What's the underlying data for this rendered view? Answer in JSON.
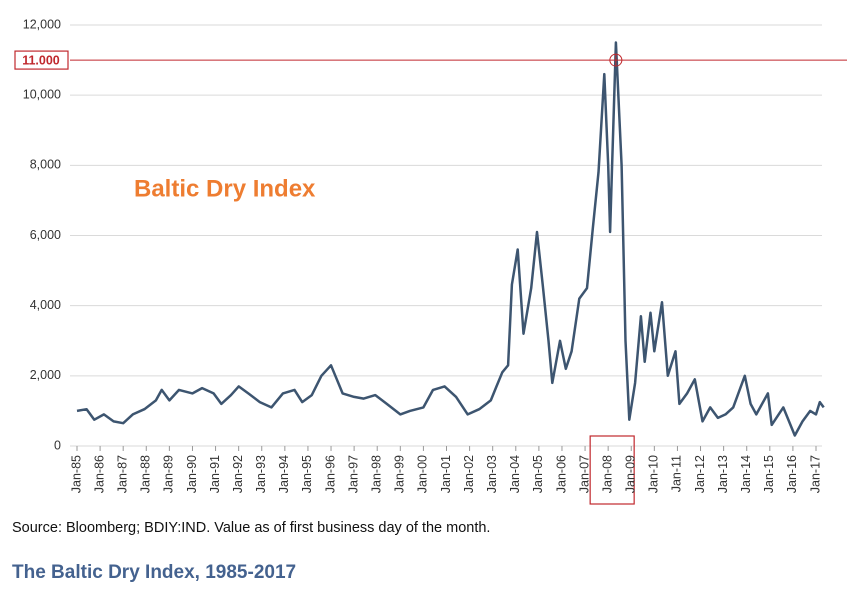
{
  "chart_data": {
    "type": "line",
    "title": "Baltic Dry Index",
    "caption": "The Baltic Dry Index, 1985-2017",
    "source": "Source: Bloomberg; BDIY:IND. Value as of first business day of the month.",
    "x": [
      "1985-01",
      "1985-06",
      "1985-10",
      "1986-03",
      "1986-08",
      "1987-01",
      "1987-06",
      "1987-12",
      "1988-06",
      "1988-09",
      "1989-01",
      "1989-06",
      "1990-01",
      "1990-06",
      "1990-12",
      "1991-04",
      "1991-09",
      "1992-01",
      "1992-06",
      "1992-12",
      "1993-06",
      "1993-12",
      "1994-06",
      "1994-10",
      "1995-03",
      "1995-08",
      "1996-01",
      "1996-04",
      "1996-07",
      "1997-01",
      "1997-06",
      "1997-12",
      "1998-06",
      "1999-01",
      "1999-06",
      "2000-01",
      "2000-06",
      "2000-12",
      "2001-06",
      "2001-12",
      "2002-06",
      "2002-12",
      "2003-03",
      "2003-06",
      "2003-09",
      "2003-11",
      "2004-02",
      "2004-05",
      "2004-09",
      "2004-12",
      "2005-03",
      "2005-06",
      "2005-08",
      "2005-12",
      "2006-03",
      "2006-06",
      "2006-10",
      "2007-02",
      "2007-05",
      "2007-08",
      "2007-11",
      "2008-01",
      "2008-02",
      "2008-03",
      "2008-05",
      "2008-08",
      "2008-10",
      "2008-12",
      "2009-03",
      "2009-06",
      "2009-08",
      "2009-11",
      "2010-01",
      "2010-05",
      "2010-08",
      "2010-12",
      "2011-02",
      "2011-06",
      "2011-10",
      "2012-02",
      "2012-06",
      "2012-10",
      "2013-02",
      "2013-06",
      "2013-12",
      "2014-03",
      "2014-06",
      "2014-12",
      "2015-02",
      "2015-08",
      "2016-02",
      "2016-06",
      "2016-10",
      "2017-01",
      "2017-03",
      "2017-05"
    ],
    "series": [
      {
        "name": "Baltic Dry Index",
        "color": "#3d5570",
        "values": [
          1000,
          1050,
          750,
          900,
          700,
          650,
          900,
          1050,
          1300,
          1600,
          1300,
          1600,
          1500,
          1650,
          1500,
          1200,
          1450,
          1700,
          1500,
          1250,
          1100,
          1500,
          1600,
          1250,
          1450,
          2000,
          2300,
          1900,
          1500,
          1400,
          1350,
          1450,
          1200,
          900,
          1000,
          1100,
          1600,
          1700,
          1400,
          900,
          1050,
          1300,
          1700,
          2100,
          2300,
          4600,
          5600,
          3200,
          4500,
          6100,
          4600,
          3000,
          1800,
          3000,
          2200,
          2700,
          4200,
          4500,
          6200,
          7800,
          10600,
          8000,
          6100,
          7900,
          11500,
          8000,
          3000,
          750,
          1800,
          3700,
          2400,
          3800,
          2700,
          4100,
          2000,
          2700,
          1200,
          1500,
          1900,
          700,
          1100,
          800,
          900,
          1100,
          2000,
          1200,
          900,
          1500,
          600,
          1100,
          300,
          700,
          1000,
          900,
          1250,
          1100
        ]
      }
    ],
    "xticks": [
      {
        "value": "1985-01",
        "label": "Jan-85"
      },
      {
        "value": "1986-01",
        "label": "Jan-86"
      },
      {
        "value": "1987-01",
        "label": "Jan-87"
      },
      {
        "value": "1988-01",
        "label": "Jan-88"
      },
      {
        "value": "1989-01",
        "label": "Jan-89"
      },
      {
        "value": "1990-01",
        "label": "Jan-90"
      },
      {
        "value": "1991-01",
        "label": "Jan-91"
      },
      {
        "value": "1992-01",
        "label": "Jan-92"
      },
      {
        "value": "1993-01",
        "label": "Jan-93"
      },
      {
        "value": "1994-01",
        "label": "Jan-94"
      },
      {
        "value": "1995-01",
        "label": "Jan-95"
      },
      {
        "value": "1996-01",
        "label": "Jan-96"
      },
      {
        "value": "1997-01",
        "label": "Jan-97"
      },
      {
        "value": "1998-01",
        "label": "Jan-98"
      },
      {
        "value": "1999-01",
        "label": "Jan-99"
      },
      {
        "value": "2000-01",
        "label": "Jan-00"
      },
      {
        "value": "2001-01",
        "label": "Jan-01"
      },
      {
        "value": "2002-01",
        "label": "Jan-02"
      },
      {
        "value": "2003-01",
        "label": "Jan-03"
      },
      {
        "value": "2004-01",
        "label": "Jan-04"
      },
      {
        "value": "2005-01",
        "label": "Jan-05"
      },
      {
        "value": "2006-01",
        "label": "Jan-06"
      },
      {
        "value": "2007-01",
        "label": "Jan-07"
      },
      {
        "value": "2008-01",
        "label": "Jan-08"
      },
      {
        "value": "2009-01",
        "label": "Jan-09"
      },
      {
        "value": "2010-01",
        "label": "Jan-10"
      },
      {
        "value": "2011-01",
        "label": "Jan-11"
      },
      {
        "value": "2012-01",
        "label": "Jan-12"
      },
      {
        "value": "2013-01",
        "label": "Jan-13"
      },
      {
        "value": "2014-01",
        "label": "Jan-14"
      },
      {
        "value": "2015-01",
        "label": "Jan-15"
      },
      {
        "value": "2016-01",
        "label": "Jan-16"
      },
      {
        "value": "2017-01",
        "label": "Jan-17"
      }
    ],
    "ylim": [
      0,
      12000
    ],
    "yticks": [
      0,
      {
        "value": 2000,
        "label": "2,000"
      },
      {
        "value": 4000,
        "label": "4,000"
      },
      {
        "value": 6000,
        "label": "6,000"
      },
      {
        "value": 8000,
        "label": "8,000"
      },
      {
        "value": 10000,
        "label": "10,000"
      },
      {
        "value": 12000,
        "label": "12,000"
      }
    ],
    "grid": true,
    "reference_line": {
      "value": 11000,
      "label": "11.000",
      "color": "#c0282d"
    },
    "highlight_xtick": "2008-01"
  }
}
